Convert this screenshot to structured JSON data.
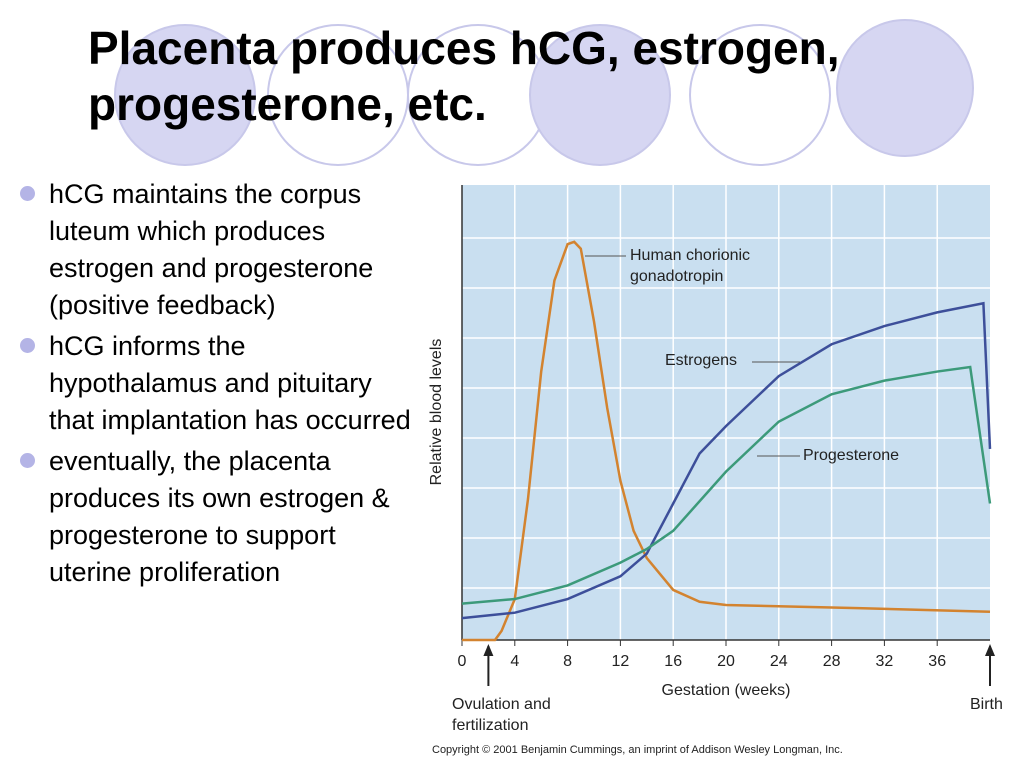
{
  "slide": {
    "title": "Placenta produces hCG, estrogen, progesterone, etc.",
    "bullets": [
      "hCG maintains the corpus luteum which produces estrogen and progesterone (positive feedback)",
      "hCG informs the hypothalamus and pituitary that implantation has occurred",
      "eventually, the placenta produces its own estrogen & progesterone to support uterine proliferation"
    ],
    "copyright": "Copyright © 2001 Benjamin Cummings, an imprint of Addison Wesley Longman, Inc."
  },
  "chart_data": {
    "type": "line",
    "x_label": "Gestation (weeks)",
    "y_label": "Relative blood levels",
    "xlim": [
      0,
      40
    ],
    "xticks": [
      0,
      4,
      8,
      12,
      16,
      20,
      24,
      28,
      32,
      36
    ],
    "ylim": [
      0,
      100
    ],
    "grid": true,
    "series": [
      {
        "name": "Human chorionic gonadotropin",
        "color": "#d3832f",
        "x": [
          0,
          2.5,
          3,
          4,
          5,
          6,
          7,
          8,
          8.5,
          9,
          10,
          11,
          12,
          13,
          14,
          16,
          18,
          20,
          30,
          40
        ],
        "values": [
          0,
          0,
          2,
          9,
          31,
          59,
          79,
          87,
          87.5,
          86,
          70,
          51,
          35,
          24,
          18,
          11,
          8.4,
          7.7,
          7,
          6.2
        ]
      },
      {
        "name": "Estrogens",
        "color": "#3d4f9a",
        "x": [
          0,
          4,
          8,
          12,
          14,
          16,
          18,
          20,
          24,
          28,
          32,
          36,
          39.5,
          40
        ],
        "values": [
          4.8,
          6,
          9,
          14,
          19,
          30,
          41,
          47,
          58,
          65,
          69,
          72,
          74,
          42
        ]
      },
      {
        "name": "Progesterone",
        "color": "#3c9a7a",
        "x": [
          0,
          4,
          8,
          12,
          14,
          16,
          20,
          24,
          28,
          32,
          36,
          38.5,
          40
        ],
        "values": [
          8,
          9,
          12,
          17,
          20,
          24,
          37,
          48,
          54,
          57,
          59,
          60,
          30
        ]
      }
    ],
    "annotations": [
      {
        "text": "Ovulation and fertilization",
        "x": 2
      },
      {
        "text": "Birth",
        "x": 40
      }
    ]
  }
}
